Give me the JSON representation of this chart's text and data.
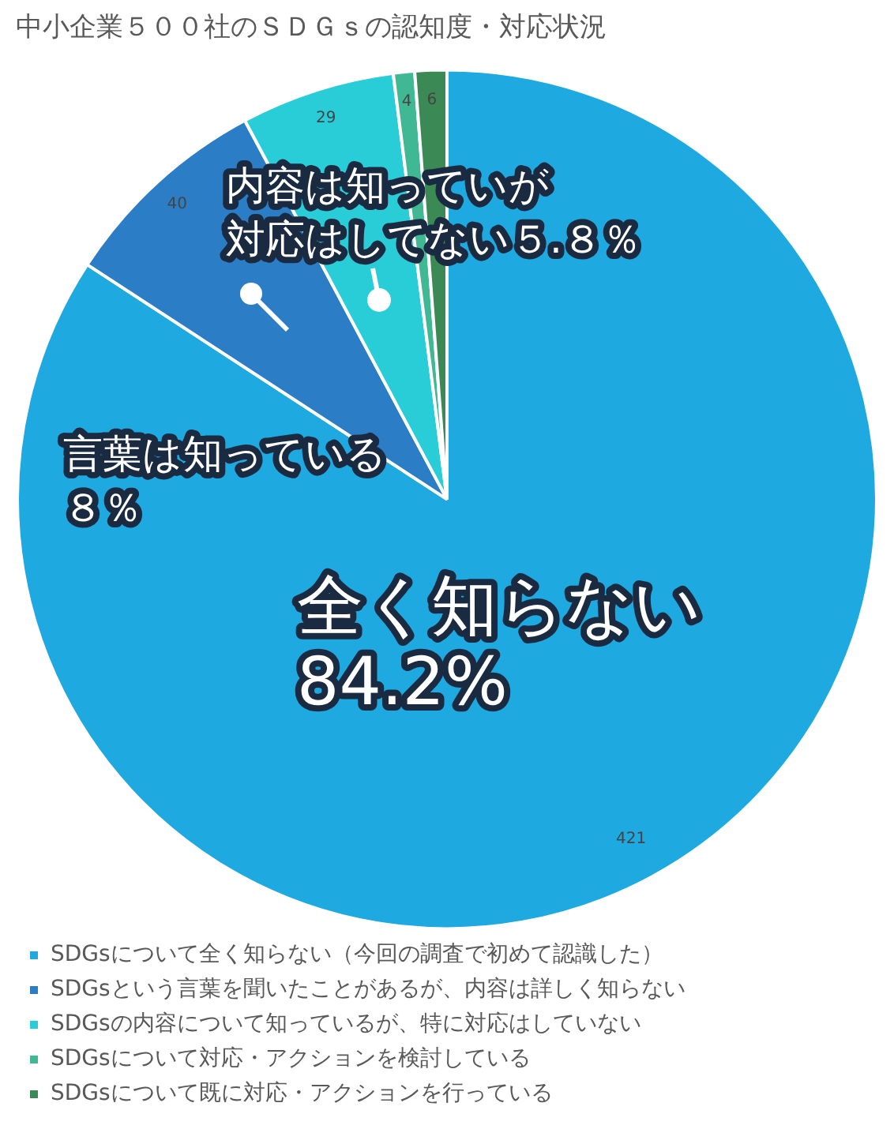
{
  "chart_data": {
    "type": "pie",
    "title": "中小企業５００社のＳＤＧｓの認知度・対応状況",
    "categories": [
      "SDGsについて全く知らない（今回の調査で初めて認識した）",
      "SDGsという言葉を聞いたことがあるが、内容は詳しく知らない",
      "SDGsの内容について知っているが、特に対応はしていない",
      "SDGsについて対応・アクションを検討している",
      "SDGsについて既に対応・アクションを行っている"
    ],
    "values": [
      421,
      40,
      29,
      4,
      6
    ],
    "colors": [
      "#1fa9e1",
      "#2b7dc6",
      "#29cdd8",
      "#3fb893",
      "#3b8a55"
    ],
    "data_labels": true,
    "legend": "bottom",
    "annotations": [
      "全く知らない",
      "84.2%",
      "言葉は知っている",
      "８％",
      "内容は知っていが",
      "対応はしてない５.８％"
    ]
  }
}
